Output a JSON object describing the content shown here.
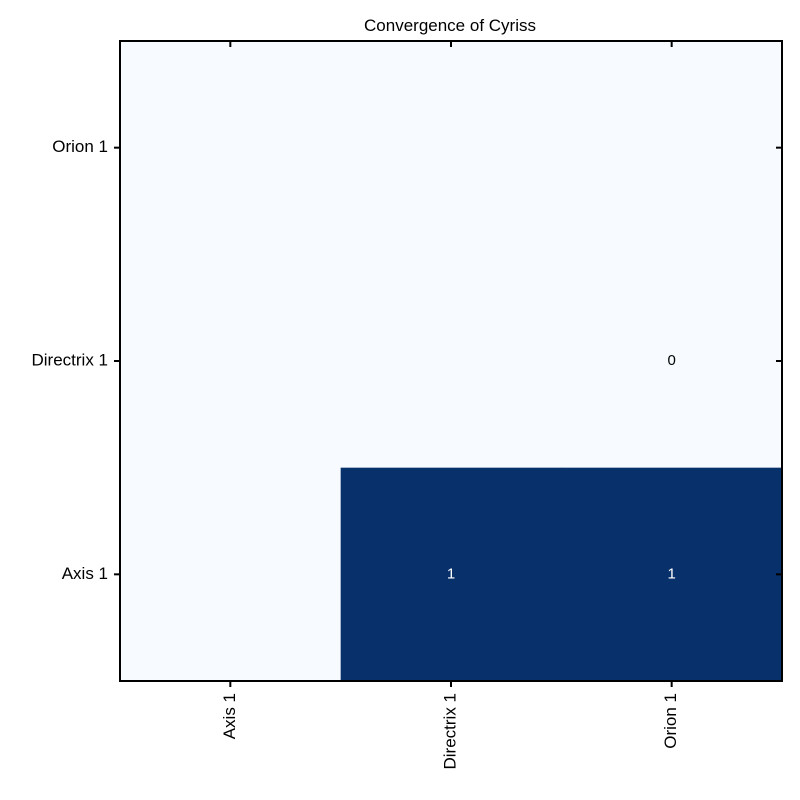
{
  "chart_data": {
    "type": "heatmap",
    "title": "Convergence of Cyriss",
    "xlabel": "",
    "ylabel": "",
    "x_categories": [
      "Axis 1",
      "Directrix 1",
      "Orion 1"
    ],
    "y_categories": [
      "Axis 1",
      "Directrix 1",
      "Orion 1"
    ],
    "rows": [
      {
        "y": "Orion 1",
        "values": [
          0,
          0,
          0
        ]
      },
      {
        "y": "Directrix 1",
        "values": [
          0,
          0,
          0
        ]
      },
      {
        "y": "Axis 1",
        "values": [
          0,
          1,
          1
        ]
      }
    ],
    "annotations": [
      {
        "x": "Orion 1",
        "y": "Directrix 1",
        "text": "0"
      },
      {
        "x": "Directrix 1",
        "y": "Axis 1",
        "text": "1"
      },
      {
        "x": "Orion 1",
        "y": "Axis 1",
        "text": "1"
      }
    ],
    "value_range": [
      0,
      1
    ],
    "colors": {
      "low": "#f7fbff",
      "high": "#08306b",
      "text_on_low": "#000000",
      "text_on_high": "#ffffff"
    }
  }
}
